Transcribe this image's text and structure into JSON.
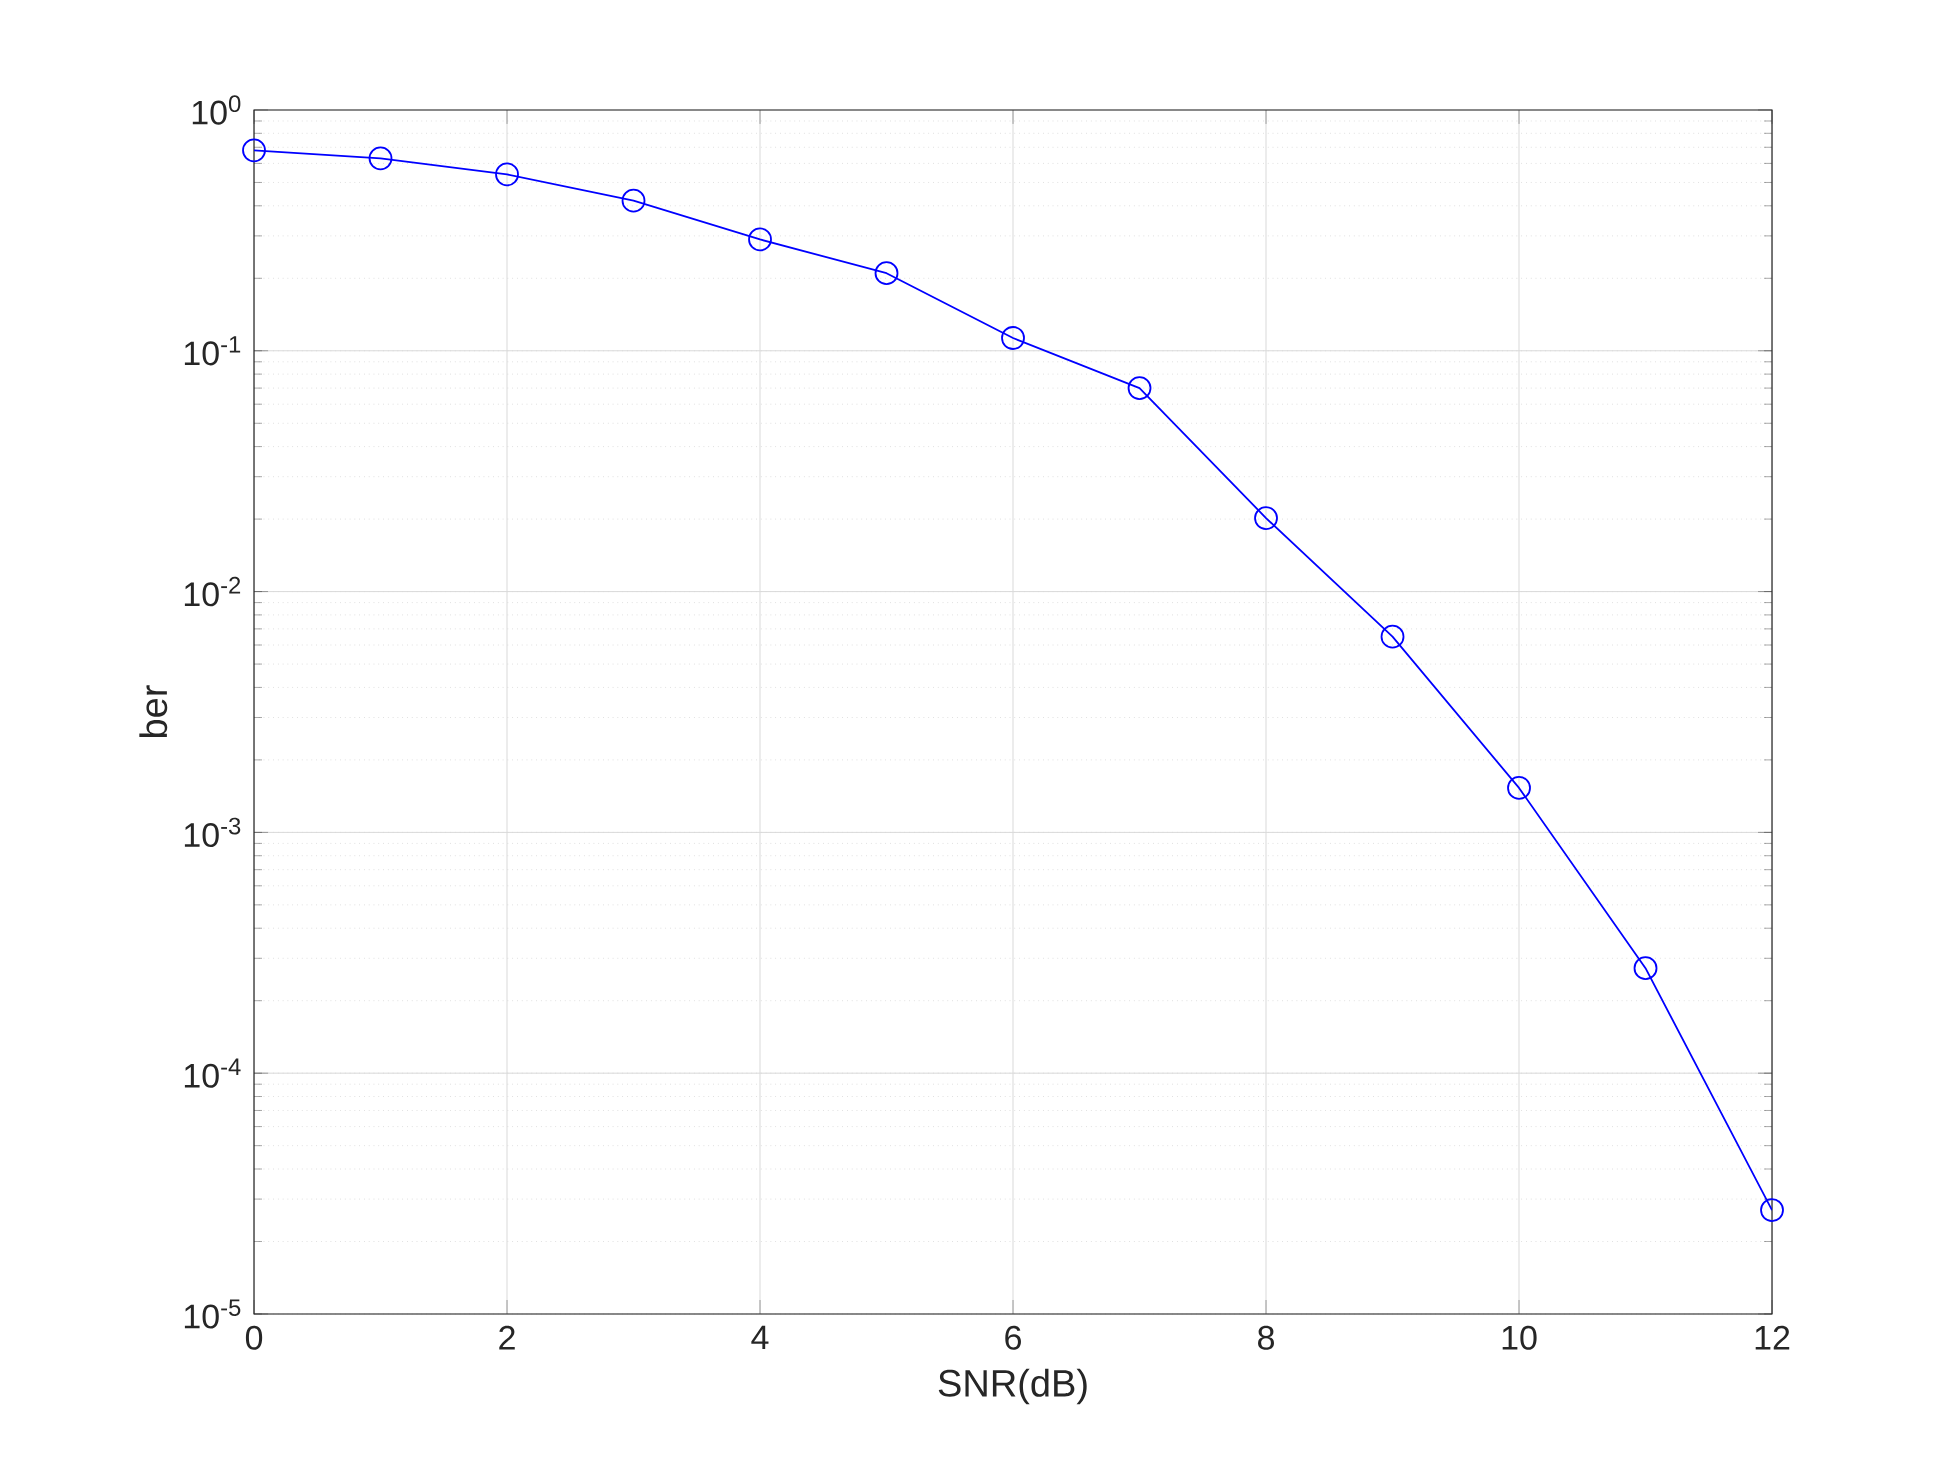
{
  "chart_data": {
    "type": "line",
    "xlabel": "SNR(dB)",
    "ylabel": "ber",
    "x": [
      0,
      1,
      2,
      3,
      4,
      5,
      6,
      7,
      8,
      9,
      10,
      11,
      12
    ],
    "series": [
      {
        "color": "#0000ff",
        "values": [
          0.68,
          0.63,
          0.54,
          0.42,
          0.29,
          0.21,
          0.113,
          0.07,
          0.0202,
          0.0065,
          0.00153,
          0.000273,
          2.7e-05
        ]
      }
    ],
    "xlim": [
      0,
      12
    ],
    "xticks": [
      0,
      2,
      4,
      6,
      8,
      10,
      12
    ],
    "ylim": [
      1e-05,
      1
    ],
    "yticks": [
      {
        "value": 1e-05,
        "label": "10$^{-5}$"
      },
      {
        "value": 0.0001,
        "label": "10$^{-4}$"
      },
      {
        "value": 0.001,
        "label": "10$^{-3}$"
      },
      {
        "value": 0.01,
        "label": "10$^{-2}$"
      },
      {
        "value": 0.1,
        "label": "10$^{-1}$"
      },
      {
        "value": 1,
        "label": "10$^{0}$"
      }
    ],
    "log": "y",
    "grid": true,
    "marker": "circle",
    "line_style": "solid"
  }
}
